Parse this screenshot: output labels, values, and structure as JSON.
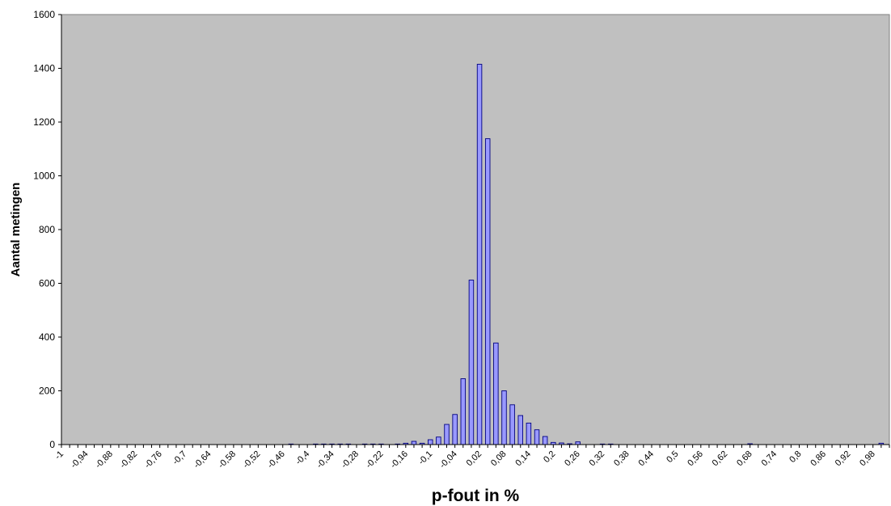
{
  "chart_data": {
    "type": "bar",
    "xlabel": "p-fout in %",
    "ylabel": "Aantal metingen",
    "ylim": [
      0,
      1600
    ],
    "yticks": [
      0,
      200,
      400,
      600,
      800,
      1000,
      1200,
      1400,
      1600
    ],
    "grid": false,
    "legend": "none",
    "xtick_labels": [
      "-1",
      "-0,94",
      "-0,88",
      "-0,82",
      "-0,76",
      "-0,7",
      "-0,64",
      "-0,58",
      "-0,52",
      "-0,46",
      "-0,4",
      "-0,34",
      "-0,28",
      "-0,22",
      "-0,16",
      "-0,1",
      "-0,04",
      "0,02",
      "0,08",
      "0,14",
      "0,2",
      "0,26",
      "0,32",
      "0,38",
      "0,44",
      "0,5",
      "0,56",
      "0,62",
      "0,68",
      "0,74",
      "0,8",
      "0,86",
      "0,92",
      "0,98"
    ],
    "x": [
      -0.44,
      -0.38,
      -0.36,
      -0.34,
      -0.32,
      -0.3,
      -0.26,
      -0.24,
      -0.22,
      -0.18,
      -0.16,
      -0.14,
      -0.12,
      -0.1,
      -0.08,
      -0.06,
      -0.04,
      -0.02,
      0.0,
      0.02,
      0.04,
      0.06,
      0.08,
      0.1,
      0.12,
      0.14,
      0.16,
      0.18,
      0.2,
      0.22,
      0.24,
      0.26,
      0.32,
      0.34,
      0.68,
      1.0
    ],
    "values": [
      2,
      2,
      2,
      2,
      2,
      2,
      2,
      2,
      2,
      2,
      5,
      12,
      5,
      18,
      28,
      75,
      112,
      245,
      612,
      1415,
      1138,
      378,
      200,
      148,
      108,
      80,
      55,
      30,
      8,
      6,
      3,
      10,
      2,
      2,
      3,
      5
    ],
    "colors": {
      "plot_bg": "#c0c0c0",
      "bar_fill": "#9999ff",
      "bar_stroke": "#000080"
    }
  }
}
